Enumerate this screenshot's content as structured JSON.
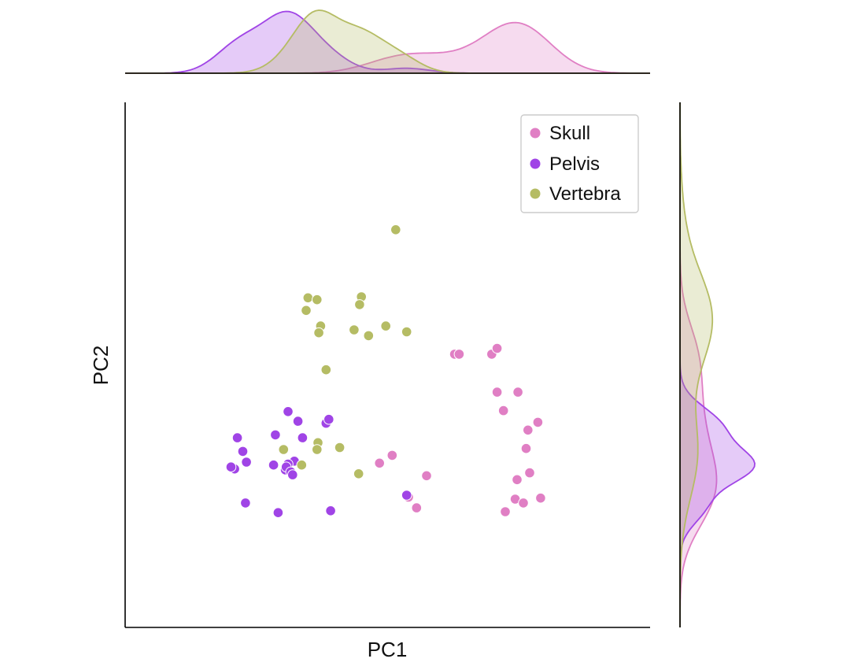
{
  "chart_data": {
    "type": "scatter",
    "title": "",
    "xlabel": "PC1",
    "ylabel": "PC2",
    "xlim": [
      -2.9,
      2.9
    ],
    "ylim": [
      -2.7,
      2.7
    ],
    "grid": false,
    "legend_placement": "top-right",
    "marginals": "kde",
    "series": [
      {
        "name": "Skull",
        "color": "#e07fc4",
        "points": [
          [
            0.74,
            0.11
          ],
          [
            0.79,
            0.11
          ],
          [
            1.15,
            0.11
          ],
          [
            1.21,
            0.17
          ],
          [
            1.21,
            -0.28
          ],
          [
            1.44,
            -0.28
          ],
          [
            1.28,
            -0.47
          ],
          [
            1.55,
            -0.67
          ],
          [
            1.66,
            -0.59
          ],
          [
            1.53,
            -0.86
          ],
          [
            -0.09,
            -1.01
          ],
          [
            0.05,
            -0.93
          ],
          [
            0.43,
            -1.14
          ],
          [
            1.43,
            -1.18
          ],
          [
            1.57,
            -1.11
          ],
          [
            1.41,
            -1.38
          ],
          [
            1.5,
            -1.42
          ],
          [
            1.69,
            -1.37
          ],
          [
            1.3,
            -1.51
          ],
          [
            0.32,
            -1.47
          ],
          [
            0.23,
            -1.36
          ]
        ]
      },
      {
        "name": "Pelvis",
        "color": "#a044e6",
        "points": [
          [
            -1.66,
            -0.75
          ],
          [
            -1.6,
            -0.89
          ],
          [
            -1.56,
            -1.0
          ],
          [
            -1.69,
            -1.07
          ],
          [
            -1.73,
            -1.05
          ],
          [
            -1.57,
            -1.42
          ],
          [
            -1.24,
            -0.72
          ],
          [
            -1.1,
            -0.48
          ],
          [
            -0.99,
            -0.58
          ],
          [
            -0.94,
            -0.75
          ],
          [
            -1.03,
            -0.99
          ],
          [
            -1.1,
            -1.02
          ],
          [
            -1.13,
            -1.08
          ],
          [
            -1.12,
            -1.05
          ],
          [
            -1.26,
            -1.03
          ],
          [
            -1.07,
            -1.1
          ],
          [
            -1.05,
            -1.13
          ],
          [
            -0.68,
            -0.6
          ],
          [
            -0.65,
            -0.56
          ],
          [
            -1.21,
            -1.52
          ],
          [
            -0.63,
            -1.5
          ],
          [
            0.21,
            -1.34
          ]
        ]
      },
      {
        "name": "Vertebra",
        "color": "#b5bc64",
        "points": [
          [
            0.09,
            1.39
          ],
          [
            -0.88,
            0.69
          ],
          [
            -0.78,
            0.67
          ],
          [
            -0.9,
            0.56
          ],
          [
            -0.74,
            0.4
          ],
          [
            -0.76,
            0.33
          ],
          [
            -0.29,
            0.7
          ],
          [
            -0.31,
            0.62
          ],
          [
            -0.37,
            0.36
          ],
          [
            -0.21,
            0.3
          ],
          [
            -0.02,
            0.4
          ],
          [
            0.21,
            0.34
          ],
          [
            -0.68,
            -0.05
          ],
          [
            -0.77,
            -0.8
          ],
          [
            -0.78,
            -0.87
          ],
          [
            -0.53,
            -0.85
          ],
          [
            -1.15,
            -0.87
          ],
          [
            -0.95,
            -1.03
          ],
          [
            -0.32,
            -1.12
          ]
        ]
      }
    ]
  }
}
